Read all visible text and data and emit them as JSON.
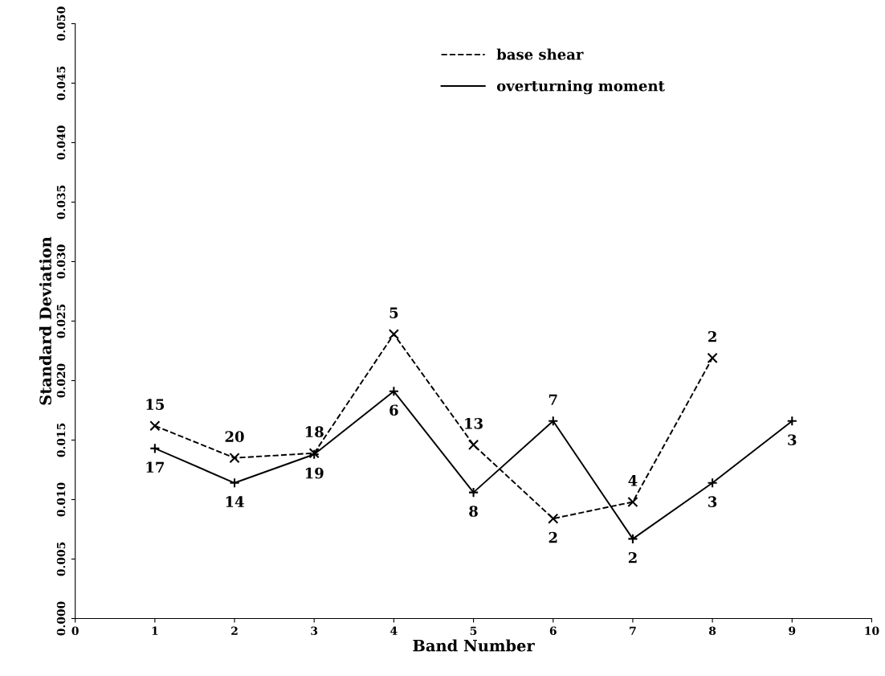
{
  "chart_data": {
    "type": "line",
    "xlabel": "Band Number",
    "ylabel": "Standard Deviation",
    "xlim": [
      0,
      10
    ],
    "xticks": [
      0,
      1,
      2,
      3,
      4,
      5,
      6,
      7,
      8,
      9,
      10
    ],
    "ylim": [
      0,
      0.05
    ],
    "yticks": [
      {
        "value": 0,
        "label": "0.000"
      },
      {
        "value": 0.005,
        "label": "0.005"
      },
      {
        "value": 0.01,
        "label": "0.010"
      },
      {
        "value": 0.015,
        "label": "0.015"
      },
      {
        "value": 0.02,
        "label": "0.020"
      },
      {
        "value": 0.025,
        "label": "0.025"
      },
      {
        "value": 0.03,
        "label": "0.030"
      },
      {
        "value": 0.035,
        "label": "0.035"
      },
      {
        "value": 0.04,
        "label": "0.040"
      },
      {
        "value": 0.045,
        "label": "0.045"
      },
      {
        "value": 0.05,
        "label": "0.050"
      }
    ],
    "grid": false,
    "legend": "top",
    "series": [
      {
        "name": "base shear",
        "color": "#000000",
        "line_style": "dashed",
        "marker": "cross",
        "x": [
          1,
          2,
          3,
          4,
          5,
          6,
          7,
          8
        ],
        "values": [
          0.0162,
          0.0135,
          0.0139,
          0.0239,
          0.0146,
          0.0084,
          0.0098,
          0.0219
        ]
      },
      {
        "name": "overturning moment",
        "color": "#000000",
        "line_style": "solid",
        "marker": "plus",
        "x": [
          1,
          2,
          3,
          4,
          5,
          6,
          7,
          8,
          9
        ],
        "values": [
          0.0143,
          0.0114,
          0.0138,
          0.0191,
          0.0106,
          0.0166,
          0.0067,
          0.0114,
          0.0166
        ]
      }
    ],
    "annotations": [
      {
        "text": "15",
        "x": 1,
        "y": 0.0162
      },
      {
        "text": "20",
        "x": 2,
        "y": 0.0135
      },
      {
        "text": "18",
        "x": 3,
        "y": 0.0139
      },
      {
        "text": "5",
        "x": 4,
        "y": 0.0239
      },
      {
        "text": "13",
        "x": 5,
        "y": 0.0146
      },
      {
        "text": "2",
        "x": 6,
        "y": 0.0084
      },
      {
        "text": "4",
        "x": 7,
        "y": 0.0098
      },
      {
        "text": "2",
        "x": 8,
        "y": 0.0219
      },
      {
        "text": "17",
        "x": 1,
        "y": 0.0143
      },
      {
        "text": "14",
        "x": 2,
        "y": 0.0114
      },
      {
        "text": "19",
        "x": 3,
        "y": 0.0138
      },
      {
        "text": "6",
        "x": 4,
        "y": 0.0191
      },
      {
        "text": "8",
        "x": 5,
        "y": 0.0106
      },
      {
        "text": "7",
        "x": 6,
        "y": 0.0166
      },
      {
        "text": "2",
        "x": 7,
        "y": 0.0067
      },
      {
        "text": "3",
        "x": 8,
        "y": 0.0114
      },
      {
        "text": "3",
        "x": 9,
        "y": 0.0166
      }
    ]
  }
}
